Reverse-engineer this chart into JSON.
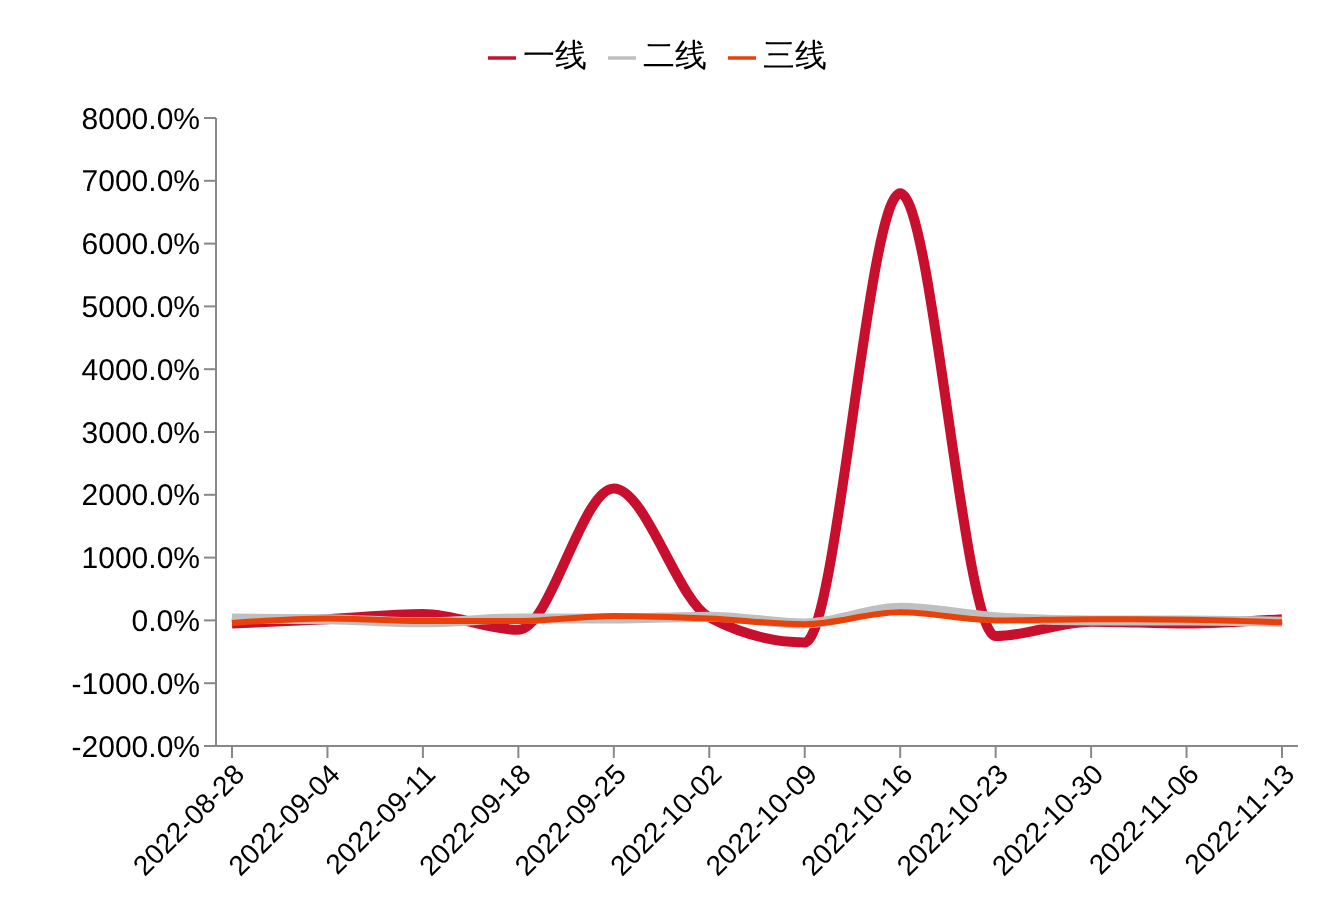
{
  "chart_data": {
    "type": "line",
    "categories": [
      "2022-08-28",
      "2022-09-04",
      "2022-09-11",
      "2022-09-18",
      "2022-09-25",
      "2022-10-02",
      "2022-10-09",
      "2022-10-16",
      "2022-10-23",
      "2022-10-30",
      "2022-11-06",
      "2022-11-13"
    ],
    "series": [
      {
        "name": "一线",
        "color": "#c8102e",
        "values": [
          -50,
          20,
          100,
          -150,
          2100,
          50,
          -350,
          6800,
          -250,
          -20,
          -50,
          20
        ]
      },
      {
        "name": "二线",
        "color": "#bfbfbf",
        "values": [
          30,
          20,
          -30,
          30,
          30,
          60,
          -50,
          200,
          50,
          0,
          0,
          -20
        ]
      },
      {
        "name": "三线",
        "color": "#e8410a",
        "values": [
          -40,
          30,
          -10,
          -10,
          70,
          30,
          -60,
          130,
          0,
          20,
          10,
          -30
        ]
      }
    ],
    "ylim": [
      -2000,
      8000
    ],
    "yticks": [
      {
        "value": -2000,
        "label": "-2000.0%"
      },
      {
        "value": -1000,
        "label": "-1000.0%"
      },
      {
        "value": 0,
        "label": "0.0%"
      },
      {
        "value": 1000,
        "label": "1000.0%"
      },
      {
        "value": 2000,
        "label": "2000.0%"
      },
      {
        "value": 3000,
        "label": "3000.0%"
      },
      {
        "value": 4000,
        "label": "4000.0%"
      },
      {
        "value": 5000,
        "label": "5000.0%"
      },
      {
        "value": 6000,
        "label": "6000.0%"
      },
      {
        "value": 7000,
        "label": "7000.0%"
      },
      {
        "value": 8000,
        "label": "8000.0%"
      }
    ],
    "legend": "top",
    "grid": false,
    "marker": "none",
    "line_style": "solid"
  }
}
